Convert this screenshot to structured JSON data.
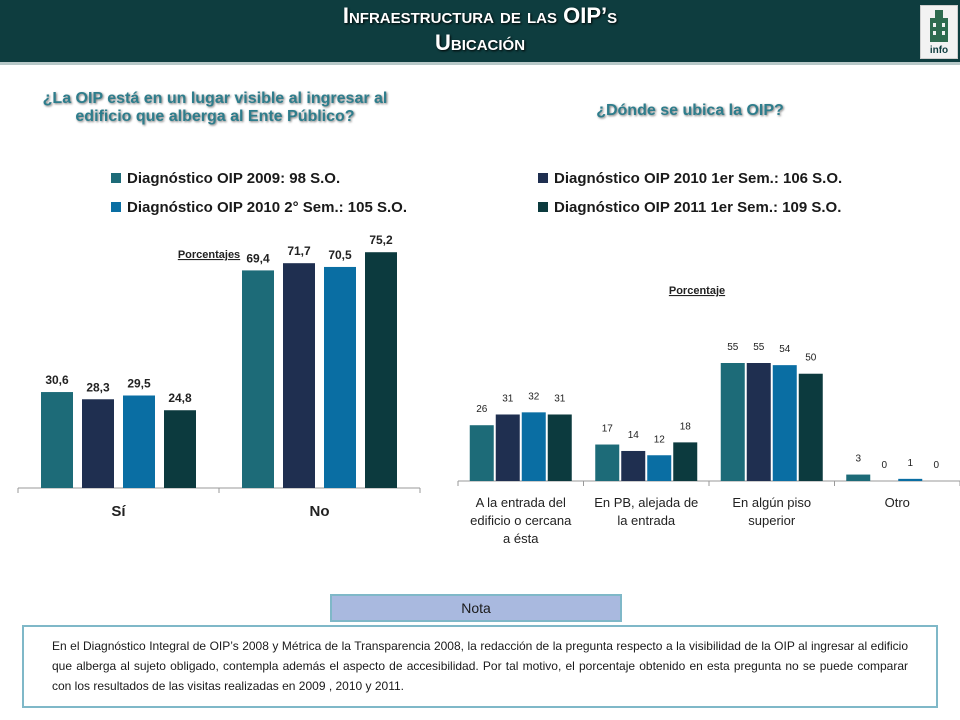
{
  "header": {
    "title_line1": "Infraestructura de las OIP’s",
    "title_line2": "Ubicación",
    "logo_text": "info"
  },
  "left_question": "¿La OIP está en un lugar visible al ingresar al edificio que alberga al Ente Público?",
  "right_question": "¿Dónde se ubica la OIP?",
  "legend": [
    {
      "label": "Diagnóstico OIP 2009: 98 S.O.",
      "color": "#1d6b78"
    },
    {
      "label": "Diagnóstico OIP 2010 1er Sem.: 106 S.O.",
      "color": "#1f2f50"
    },
    {
      "label": "Diagnóstico OIP 2010 2° Sem.: 105 S.O.",
      "color": "#0a6ea3"
    },
    {
      "label": "Diagnóstico OIP 2011 1er Sem.: 109 S.O.",
      "color": "#0c3a3e"
    }
  ],
  "chart_data": [
    {
      "type": "bar",
      "ylabel": "Porcentajes",
      "categories": [
        "Sí",
        "No"
      ],
      "series": [
        {
          "name": "Diagnóstico OIP 2009: 98 S.O.",
          "values": [
            30.6,
            69.4
          ],
          "labels": [
            "30,6",
            "69,4"
          ]
        },
        {
          "name": "Diagnóstico OIP 2010 1er Sem.: 106 S.O.",
          "values": [
            28.3,
            71.7
          ],
          "labels": [
            "28,3",
            "71,7"
          ]
        },
        {
          "name": "Diagnóstico OIP 2010 2° Sem.: 105 S.O.",
          "values": [
            29.5,
            70.5
          ],
          "labels": [
            "29,5",
            "70,5"
          ]
        },
        {
          "name": "Diagnóstico OIP 2011 1er Sem.: 109 S.O.",
          "values": [
            24.8,
            75.2
          ],
          "labels": [
            "24,8",
            "75,2"
          ]
        }
      ],
      "legend_position": "top"
    },
    {
      "type": "bar",
      "ylabel": "Porcentaje",
      "categories": [
        "A la entrada del edificio o cercana a ésta",
        "En PB, alejada de la entrada",
        "En algún piso superior",
        "Otro"
      ],
      "category_lines": [
        [
          "A la entrada del",
          "edificio o cercana",
          "a ésta"
        ],
        [
          "En PB, alejada de",
          "la entrada"
        ],
        [
          "En algún piso",
          "superior"
        ],
        [
          "Otro"
        ]
      ],
      "series": [
        {
          "name": "Diagnóstico OIP 2009: 98 S.O.",
          "values": [
            26,
            17,
            55,
            3
          ]
        },
        {
          "name": "Diagnóstico OIP 2010 1er Sem.: 106 S.O.",
          "values": [
            31,
            14,
            55,
            0
          ]
        },
        {
          "name": "Diagnóstico OIP 2010 2° Sem.: 105 S.O.",
          "values": [
            32,
            12,
            54,
            1
          ]
        },
        {
          "name": "Diagnóstico OIP 2011 1er Sem.: 109 S.O.",
          "values": [
            31,
            18,
            50,
            0
          ]
        }
      ],
      "legend_position": "top"
    }
  ],
  "nota": {
    "title": "Nota",
    "text": "En el Diagnóstico Integral de OIP’s 2008 y Métrica de la Transparencia 2008, la redacción de la pregunta respecto a la visibilidad de la OIP al ingresar al edificio que alberga al sujeto obligado, contempla además el aspecto de accesibilidad. Por tal motivo, el porcentaje obtenido en esta pregunta no se puede comparar con los resultados de las visitas realizadas en 2009 , 2010 y 2011."
  }
}
